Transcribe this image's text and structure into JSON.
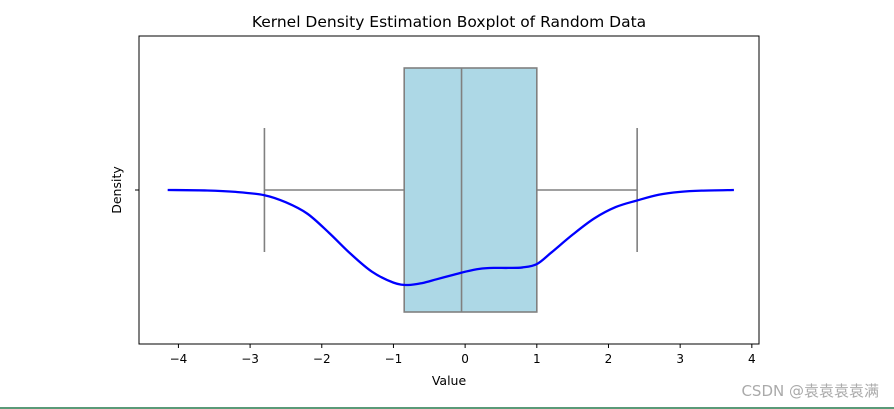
{
  "chart_data": {
    "type": "box",
    "title": "Kernel Density Estimation Boxplot of Random Data",
    "xlabel": "Value",
    "ylabel": "Density",
    "xlim": [
      -4.55,
      4.1
    ],
    "xticks": [
      -4,
      -3,
      -2,
      -1,
      0,
      1,
      2,
      3,
      4
    ],
    "xtick_labels": [
      "−4",
      "−3",
      "−2",
      "−1",
      "0",
      "1",
      "2",
      "3",
      "4"
    ],
    "box": {
      "whisker_low": -2.8,
      "q1": -0.85,
      "median": -0.05,
      "q3": 1.0,
      "whisker_high": 2.4,
      "fill_color": "#add8e6",
      "edge_color": "#808080"
    },
    "kde_curve": {
      "color": "#0000ff",
      "y_orientation": "drawn downward from the box center line",
      "x": [
        -4.15,
        -3.6,
        -3.2,
        -2.8,
        -2.5,
        -2.2,
        -1.9,
        -1.6,
        -1.3,
        -1.0,
        -0.8,
        -0.6,
        -0.4,
        -0.2,
        0.0,
        0.2,
        0.4,
        0.6,
        0.8,
        1.0,
        1.2,
        1.5,
        1.8,
        2.1,
        2.4,
        2.7,
        3.0,
        3.3,
        3.75
      ],
      "y": [
        0.0,
        0.005,
        0.02,
        0.055,
        0.13,
        0.25,
        0.45,
        0.67,
        0.86,
        0.975,
        1.0,
        0.98,
        0.94,
        0.9,
        0.86,
        0.83,
        0.82,
        0.82,
        0.815,
        0.78,
        0.66,
        0.47,
        0.3,
        0.18,
        0.11,
        0.05,
        0.02,
        0.007,
        0.0
      ]
    }
  },
  "watermark": "CSDN @袁袁袁袁满"
}
